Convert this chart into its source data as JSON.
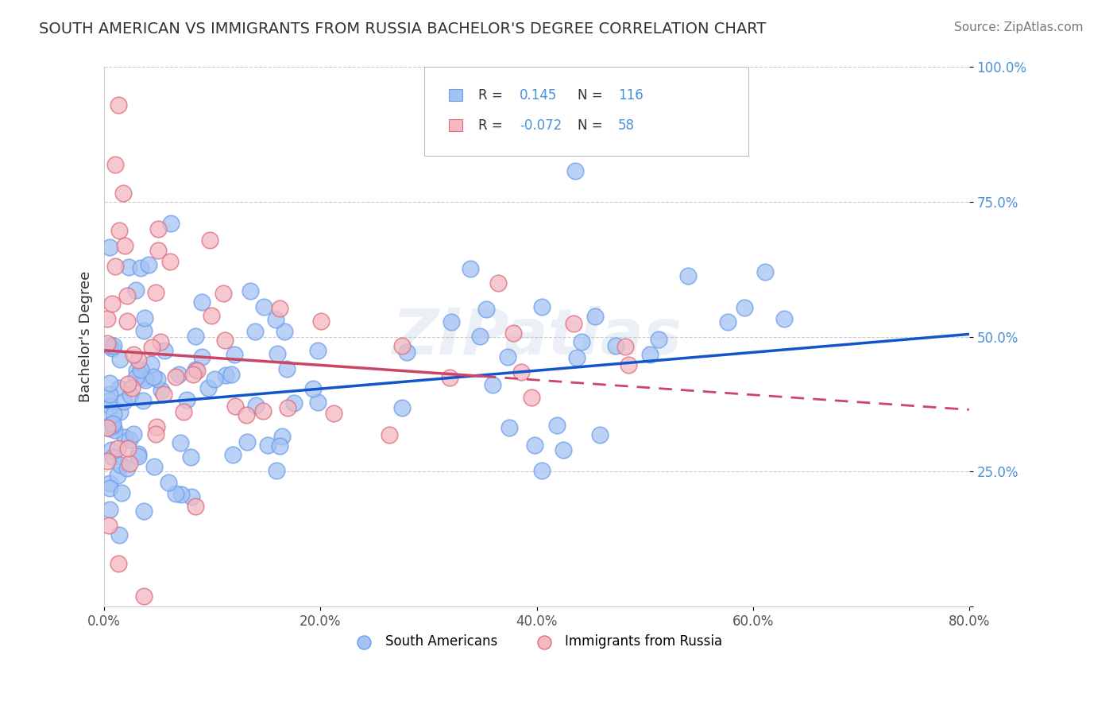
{
  "title": "SOUTH AMERICAN VS IMMIGRANTS FROM RUSSIA BACHELOR'S DEGREE CORRELATION CHART",
  "source": "Source: ZipAtlas.com",
  "ylabel": "Bachelor's Degree",
  "xlim": [
    0.0,
    80.0
  ],
  "ylim": [
    0.0,
    100.0
  ],
  "xtick_vals": [
    0,
    20,
    40,
    60,
    80
  ],
  "ytick_vals": [
    0,
    25,
    50,
    75,
    100
  ],
  "xtick_labels": [
    "0.0%",
    "20.0%",
    "40.0%",
    "60.0%",
    "80.0%"
  ],
  "ytick_labels": [
    "",
    "25.0%",
    "50.0%",
    "75.0%",
    "100.0%"
  ],
  "blue_face_color": "#a4c2f4",
  "blue_edge_color": "#6d9eeb",
  "pink_face_color": "#f4b8c1",
  "pink_edge_color": "#e06c7f",
  "blue_line_color": "#1155cc",
  "pink_line_color": "#cc4466",
  "ytick_color": "#4a90d9",
  "xtick_color": "#555555",
  "R_blue": 0.145,
  "N_blue": 116,
  "R_pink": -0.072,
  "N_pink": 58,
  "legend_label_blue": "South Americans",
  "legend_label_pink": "Immigrants from Russia",
  "watermark": "ZIPatlas",
  "blue_line_x0": 0,
  "blue_line_x1": 80,
  "blue_line_y0": 37.0,
  "blue_line_y1": 50.5,
  "pink_line_x0": 0,
  "pink_line_x1": 80,
  "pink_line_y0": 47.5,
  "pink_line_y1": 36.5,
  "pink_solid_x1": 35
}
